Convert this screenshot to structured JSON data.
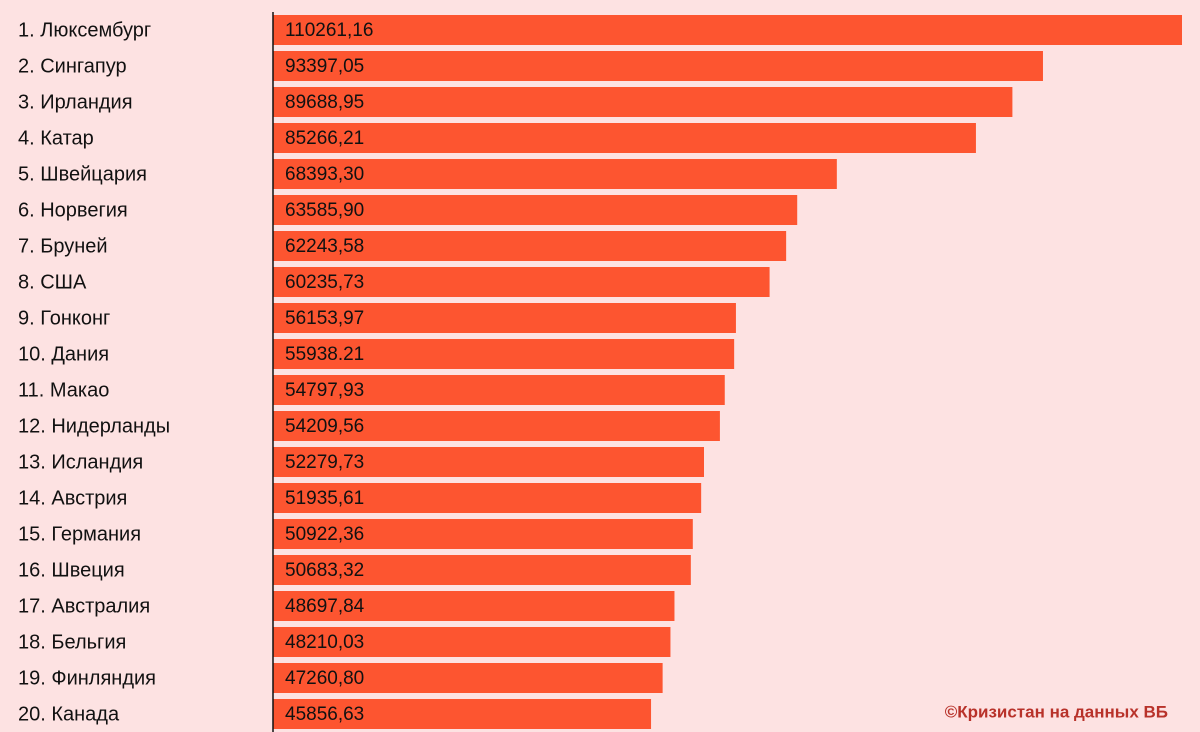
{
  "chart_data": {
    "type": "barh",
    "categories": [
      "1. Люксембург",
      "2. Сингапур",
      "3. Ирландия",
      "4. Катар",
      "5. Швейцария",
      "6. Норвегия",
      "7. Бруней",
      "8. США",
      "9. Гонконг",
      "10. Дания",
      "11. Макао",
      "12. Нидерланды",
      "13. Исландия",
      "14. Австрия",
      "15. Германия",
      "16. Швеция",
      "17. Австралия",
      "18. Бельгия",
      "19. Финляндия",
      "20. Канада"
    ],
    "values": [
      110261.16,
      93397.05,
      89688.95,
      85266.21,
      68393.3,
      63585.9,
      62243.58,
      60235.73,
      56153.97,
      55938.21,
      54797.93,
      54209.56,
      52279.73,
      51935.61,
      50922.36,
      50683.32,
      48697.84,
      48210.03,
      47260.8,
      45856.63
    ],
    "value_labels": [
      "110261,16",
      "93397,05",
      "89688,95",
      "85266,21",
      "68393,30",
      "63585,90",
      "62243,58",
      "60235,73",
      "56153,97",
      "55938.21",
      "54797,93",
      "54209,56",
      "52279,73",
      "51935,61",
      "50922,36",
      "50683,32",
      "48697,84",
      "48210,03",
      "47260,80",
      "45856,63"
    ],
    "color": "#fd5530",
    "annotation": "©Кризистан на данных ВБ"
  }
}
